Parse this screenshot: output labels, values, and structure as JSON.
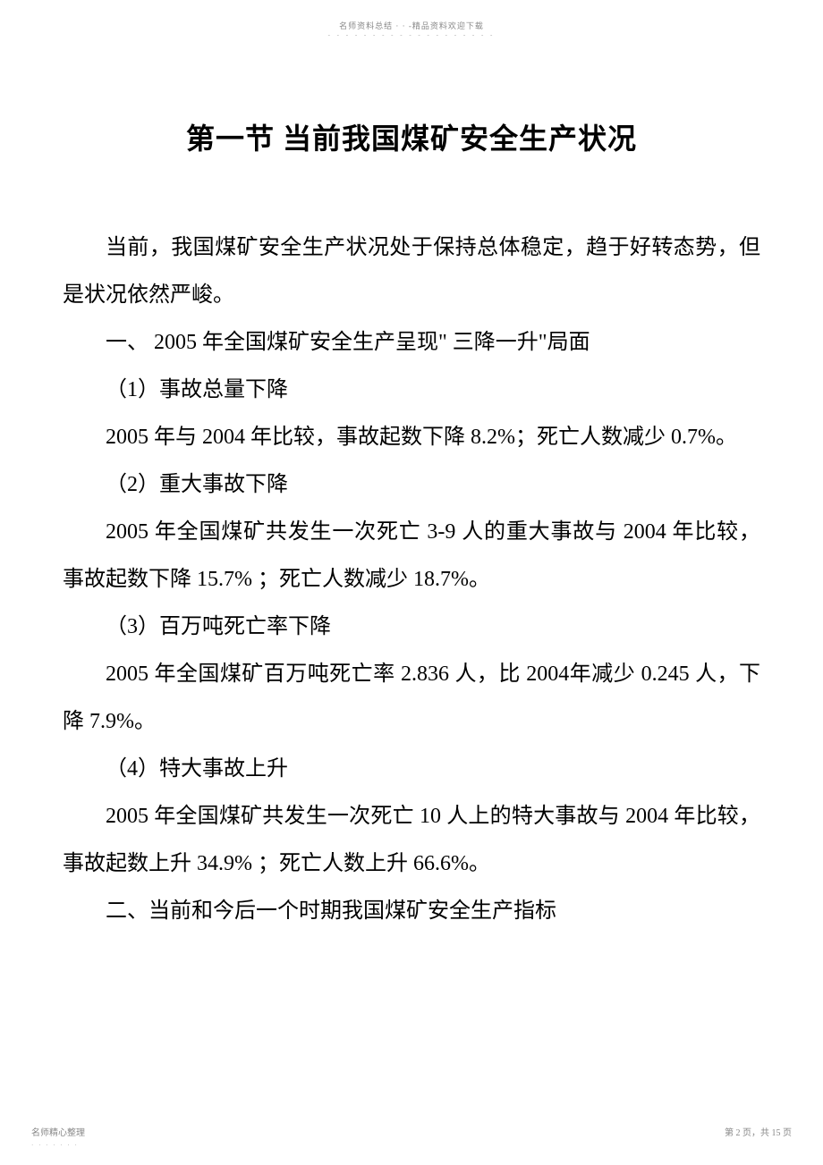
{
  "header": {
    "text": "名师资料总结 · · -精品资料欢迎下载",
    "dots": "- - - - - - - - - - - - - - - - - - -"
  },
  "title": "第一节    当前我国煤矿安全生产状况",
  "paragraphs": {
    "intro": "当前，我国煤矿安全生产状况处于保持总体稳定，趋于好转态势，但是状况依然严峻。",
    "section1": "一、  2005  年全国煤矿安全生产呈现\" 三降一升\"局面",
    "item1_title": "（1）事故总量下降",
    "item1_body": "2005 年与  2004 年比较，事故起数下降    8.2%；死亡人数减少   0.7%。",
    "item2_title": "（2）重大事故下降",
    "item2_body": "2005 年全国煤矿共发生一次死亡    3-9 人的重大事故与  2004 年比较， 事故起数下降   15.7% ；死亡人数减少 18.7%。",
    "item3_title": "（3）百万吨死亡率下降",
    "item3_body": "2005 年全国煤矿百万吨死亡率    2.836  人，比  2004年减少  0.245  人，下降  7.9%。",
    "item4_title": "（4）特大事故上升",
    "item4_body": "2005 年全国煤矿共发生一次死亡    10 人上的特大事故与  2004 年比较， 事故起数上升   34.9% ；死亡人数上升 66.6%。",
    "section2": "二、当前和今后一个时期我国煤矿安全生产指标"
  },
  "footer": {
    "left": "名师精心整理",
    "dots_left": "· · · · · · ·",
    "right": "第 2 页，共 15 页"
  }
}
